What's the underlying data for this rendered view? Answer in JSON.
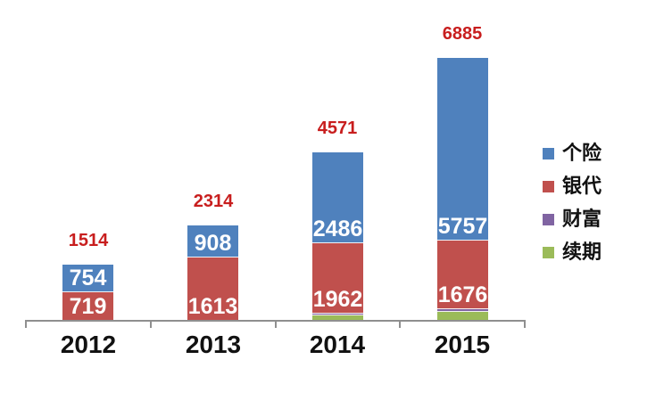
{
  "chart_data": {
    "type": "bar",
    "stacked": true,
    "title": "",
    "xlabel": "",
    "ylabel": "",
    "grid": false,
    "legend_position": "right",
    "axis_color": "#8f8f8f",
    "total_label_color": "#c81e1e",
    "categories": [
      "2012",
      "2013",
      "2014",
      "2015"
    ],
    "series": [
      {
        "name": "个险",
        "color": "#4f81bd",
        "values": [
          754,
          908,
          2486,
          5757
        ]
      },
      {
        "name": "银代",
        "color": "#c0504d",
        "values": [
          719,
          1613,
          1962,
          1676
        ]
      },
      {
        "name": "财富",
        "color": "#8064a2",
        "values": [
          null,
          null,
          null,
          null
        ]
      },
      {
        "name": "续期",
        "color": "#9bbb59",
        "values": [
          null,
          null,
          null,
          null
        ]
      }
    ],
    "totals": [
      "1514",
      "2314",
      "4571",
      "6885"
    ],
    "bars": [
      {
        "category": "2012",
        "total_label": "1514",
        "segments": [
          {
            "series": "续期",
            "px": 0,
            "label": ""
          },
          {
            "series": "财富",
            "px": 0,
            "label": ""
          },
          {
            "series": "银代",
            "px": 31,
            "label": "719"
          },
          {
            "series": "个险",
            "px": 31,
            "label": "754"
          }
        ]
      },
      {
        "category": "2013",
        "total_label": "2314",
        "segments": [
          {
            "series": "续期",
            "px": 0,
            "label": ""
          },
          {
            "series": "财富",
            "px": 0,
            "label": ""
          },
          {
            "series": "银代",
            "px": 70,
            "label": "1613"
          },
          {
            "series": "个险",
            "px": 36,
            "label": "908"
          }
        ]
      },
      {
        "category": "2014",
        "total_label": "4571",
        "segments": [
          {
            "series": "续期",
            "px": 5,
            "label": ""
          },
          {
            "series": "财富",
            "px": 2,
            "label": ""
          },
          {
            "series": "银代",
            "px": 79,
            "label": "1962"
          },
          {
            "series": "个险",
            "px": 102,
            "label": "2486"
          }
        ]
      },
      {
        "category": "2015",
        "total_label": "6885",
        "segments": [
          {
            "series": "续期",
            "px": 9,
            "label": ""
          },
          {
            "series": "财富",
            "px": 3,
            "label": ""
          },
          {
            "series": "银代",
            "px": 77,
            "label": "1676"
          },
          {
            "series": "个险",
            "px": 205,
            "label": "5757"
          }
        ]
      }
    ]
  },
  "legend": {
    "items": [
      {
        "label": "个险",
        "color": "#4f81bd"
      },
      {
        "label": "银代",
        "color": "#c0504d"
      },
      {
        "label": "财富",
        "color": "#8064a2"
      },
      {
        "label": "续期",
        "color": "#9bbb59"
      }
    ]
  }
}
